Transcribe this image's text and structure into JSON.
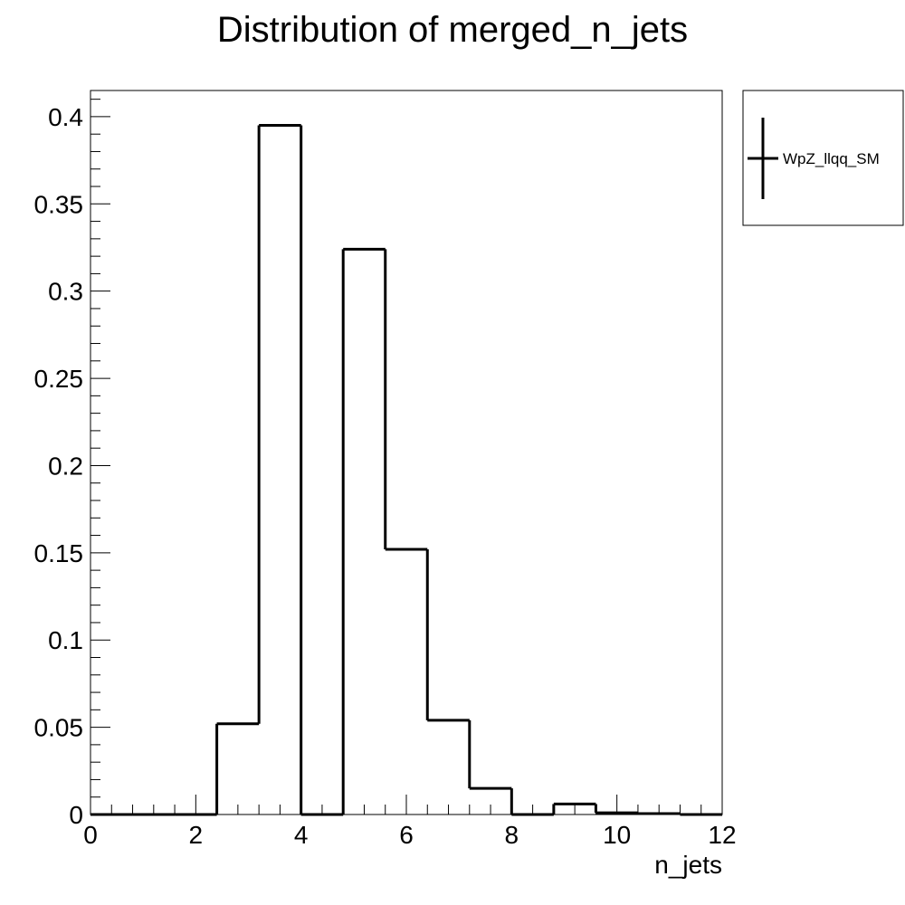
{
  "chart_data": {
    "type": "bar",
    "histogram": true,
    "title": "Distribution of merged_n_jets",
    "xlabel": "n_jets",
    "ylabel": "",
    "xlim": [
      0,
      12
    ],
    "ylim": [
      0,
      0.415
    ],
    "bin_width": 0.8,
    "x_bin_edges": [
      0,
      0.8,
      1.6,
      2.4,
      3.2,
      4.0,
      4.8,
      5.6,
      6.4,
      7.2,
      8.0,
      8.8,
      9.6,
      10.4,
      11.2,
      12.0
    ],
    "series": [
      {
        "name": "WpZ_llqq_SM",
        "color": "#000000",
        "values": [
          0,
          0,
          0,
          0.052,
          0.395,
          0,
          0.324,
          0.152,
          0.054,
          0.015,
          0,
          0.006,
          0.001,
          0.0005,
          0
        ]
      }
    ],
    "x_ticks": [
      "0",
      "2",
      "4",
      "6",
      "8",
      "10",
      "12"
    ],
    "y_ticks": [
      "0",
      "0.05",
      "0.1",
      "0.15",
      "0.2",
      "0.25",
      "0.3",
      "0.35",
      "0.4"
    ],
    "legend": {
      "position": "top-right",
      "outside": true
    },
    "grid": false
  }
}
